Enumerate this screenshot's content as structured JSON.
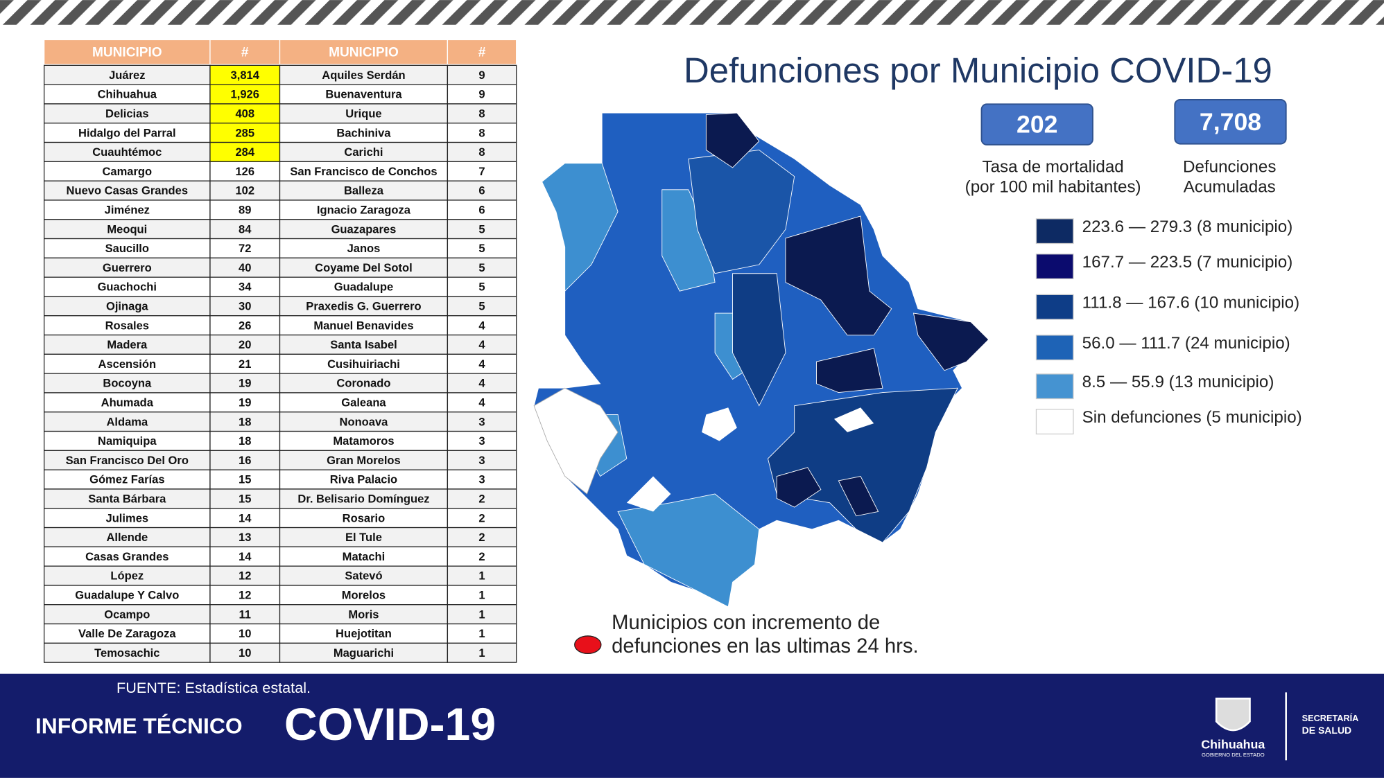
{
  "header": {
    "title": "Defunciones por Municipio COVID-19"
  },
  "table": {
    "columns": [
      "MUNICIPIO",
      "#",
      "MUNICIPIO",
      "#"
    ],
    "rows": [
      [
        "Juárez",
        "3,814",
        "Aquiles Serdán",
        "9"
      ],
      [
        "Chihuahua",
        "1,926",
        "Buenaventura",
        "9"
      ],
      [
        "Delicias",
        "408",
        "Urique",
        "8"
      ],
      [
        "Hidalgo del Parral",
        "285",
        "Bachiniva",
        "8"
      ],
      [
        "Cuauhtémoc",
        "284",
        "Carichi",
        "8"
      ],
      [
        "Camargo",
        "126",
        "San Francisco de Conchos",
        "7"
      ],
      [
        "Nuevo Casas Grandes",
        "102",
        "Balleza",
        "6"
      ],
      [
        "Jiménez",
        "89",
        "Ignacio Zaragoza",
        "6"
      ],
      [
        "Meoqui",
        "84",
        "Guazapares",
        "5"
      ],
      [
        "Saucillo",
        "72",
        "Janos",
        "5"
      ],
      [
        "Guerrero",
        "40",
        "Coyame Del Sotol",
        "5"
      ],
      [
        "Guachochi",
        "34",
        "Guadalupe",
        "5"
      ],
      [
        "Ojinaga",
        "30",
        "Praxedis G. Guerrero",
        "5"
      ],
      [
        "Rosales",
        "26",
        "Manuel Benavides",
        "4"
      ],
      [
        "Madera",
        "20",
        "Santa Isabel",
        "4"
      ],
      [
        "Ascensión",
        "21",
        "Cusihuiriachi",
        "4"
      ],
      [
        "Bocoyna",
        "19",
        "Coronado",
        "4"
      ],
      [
        "Ahumada",
        "19",
        "Galeana",
        "4"
      ],
      [
        "Aldama",
        "18",
        "Nonoava",
        "3"
      ],
      [
        "Namiquipa",
        "18",
        "Matamoros",
        "3"
      ],
      [
        "San Francisco Del Oro",
        "16",
        "Gran Morelos",
        "3"
      ],
      [
        "Gómez Farías",
        "15",
        "Riva Palacio",
        "3"
      ],
      [
        "Santa Bárbara",
        "15",
        "Dr. Belisario Domínguez",
        "2"
      ],
      [
        "Julimes",
        "14",
        "Rosario",
        "2"
      ],
      [
        "Allende",
        "13",
        "El Tule",
        "2"
      ],
      [
        "Casas Grandes",
        "14",
        "Matachi",
        "2"
      ],
      [
        "López",
        "12",
        "Satevó",
        "1"
      ],
      [
        "Guadalupe Y Calvo",
        "12",
        "Morelos",
        "1"
      ],
      [
        "Ocampo",
        "11",
        "Moris",
        "1"
      ],
      [
        "Valle De Zaragoza",
        "10",
        "Huejotitan",
        "1"
      ],
      [
        "Temosachic",
        "10",
        "Maguarichi",
        "1"
      ]
    ]
  },
  "stats": [
    {
      "value": "202",
      "label": [
        "Tasa de mortalidad",
        "(por 100 mil habitantes)"
      ]
    },
    {
      "value": "7,708",
      "label": [
        "Defunciones",
        "Acumuladas"
      ]
    }
  ],
  "legend": [
    {
      "label": "223.6 — 279.3 (8 municipio)",
      "color": "#0d2a63"
    },
    {
      "label": "167.7 — 223.5 (7 municipio)",
      "color": "#0b0b6e"
    },
    {
      "label": "111.8 — 167.6 (10 municipio)",
      "color": "#0e3d87"
    },
    {
      "label": "56.0 — 111.7 (24 municipio)",
      "color": "#1e63b6"
    },
    {
      "label": "8.5 — 55.9 (13 municipio)",
      "color": "#4593d1"
    },
    {
      "label": "Sin defunciones (5 municipio)",
      "color": "#ffffff"
    }
  ],
  "note": [
    "Municipios con incremento de",
    "defunciones en las ultimas 24 hrs."
  ],
  "footer": {
    "source": "FUENTE: Estadística estatal.",
    "report": "INFORME TÉCNICO",
    "topic": "COVID-19",
    "logo": "Chihuahua",
    "logo_sub": "GOBIERNO DEL ESTADO",
    "dept": [
      "SECRETARÍA",
      "DE SALUD"
    ]
  }
}
